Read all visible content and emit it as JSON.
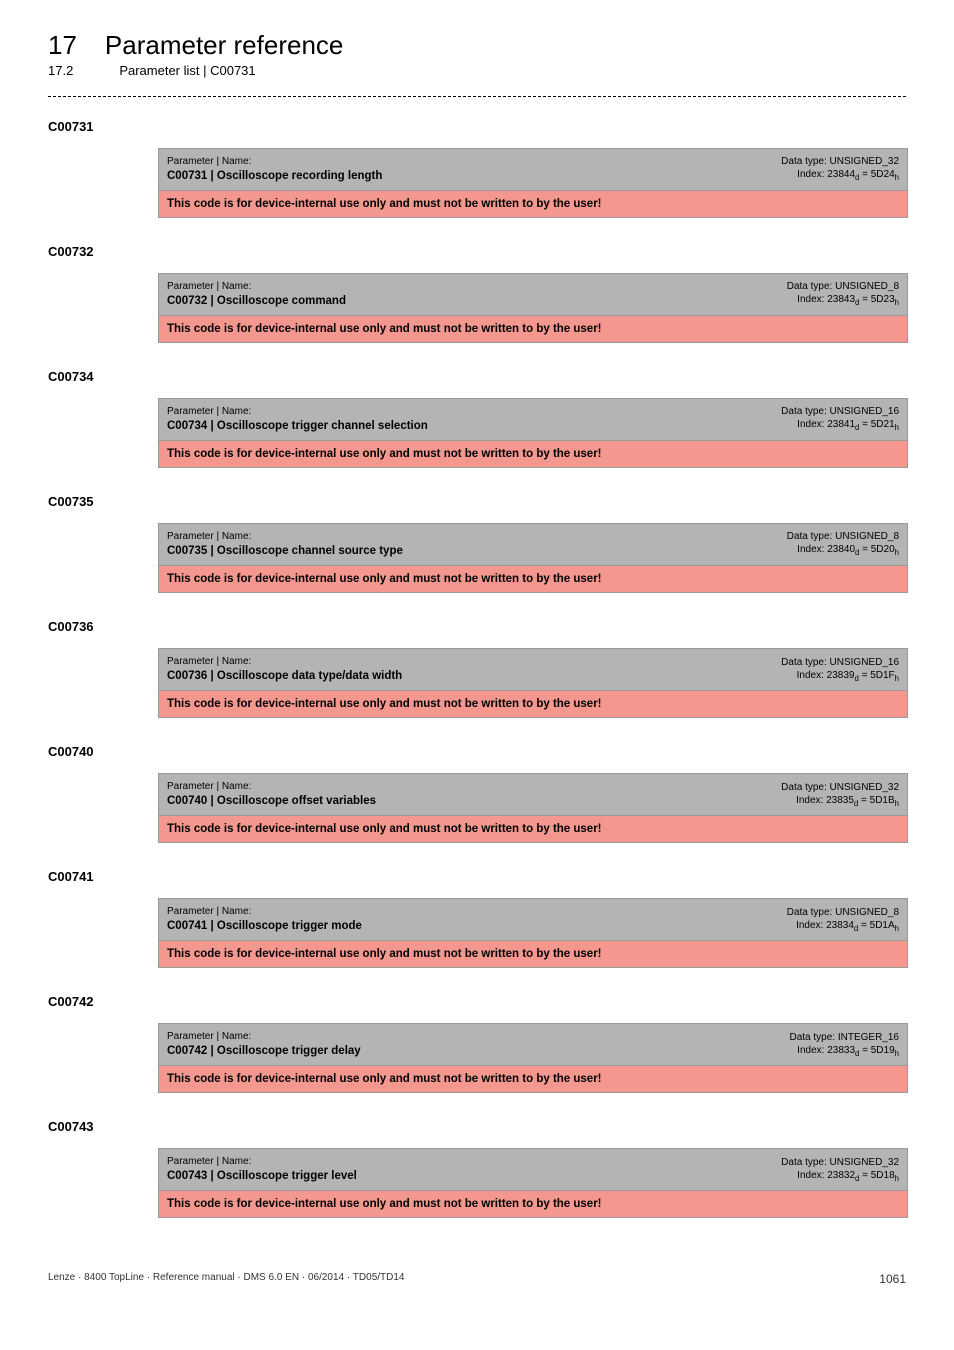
{
  "header": {
    "chapter_num": "17",
    "chapter_title": "Parameter reference",
    "sub_num": "17.2",
    "sub_title": "Parameter list | C00731"
  },
  "warn_text": "This code is for device-internal use only and must not be written to by the user!",
  "param_label": "Parameter | Name:",
  "params": [
    {
      "code": "C00731",
      "name": "C00731 | Oscilloscope recording length",
      "dtype": "Data type: UNSIGNED_32",
      "index_pre": "Index: 23844",
      "index_mid": " = 5D24"
    },
    {
      "code": "C00732",
      "name": "C00732 | Oscilloscope command",
      "dtype": "Data type: UNSIGNED_8",
      "index_pre": "Index: 23843",
      "index_mid": " = 5D23"
    },
    {
      "code": "C00734",
      "name": "C00734 | Oscilloscope trigger channel selection",
      "dtype": "Data type: UNSIGNED_16",
      "index_pre": "Index: 23841",
      "index_mid": " = 5D21"
    },
    {
      "code": "C00735",
      "name": "C00735 | Oscilloscope channel source type",
      "dtype": "Data type: UNSIGNED_8",
      "index_pre": "Index: 23840",
      "index_mid": " = 5D20"
    },
    {
      "code": "C00736",
      "name": "C00736 | Oscilloscope data type/data width",
      "dtype": "Data type: UNSIGNED_16",
      "index_pre": "Index: 23839",
      "index_mid": " = 5D1F"
    },
    {
      "code": "C00740",
      "name": "C00740 | Oscilloscope offset variables",
      "dtype": "Data type: UNSIGNED_32",
      "index_pre": "Index: 23835",
      "index_mid": " = 5D1B"
    },
    {
      "code": "C00741",
      "name": "C00741 | Oscilloscope trigger mode",
      "dtype": "Data type: UNSIGNED_8",
      "index_pre": "Index: 23834",
      "index_mid": " = 5D1A"
    },
    {
      "code": "C00742",
      "name": "C00742 | Oscilloscope trigger delay",
      "dtype": "Data type: INTEGER_16",
      "index_pre": "Index: 23833",
      "index_mid": " = 5D19"
    },
    {
      "code": "C00743",
      "name": "C00743 | Oscilloscope trigger level",
      "dtype": "Data type: UNSIGNED_32",
      "index_pre": "Index: 23832",
      "index_mid": " = 5D18"
    }
  ],
  "footer": {
    "left": "Lenze · 8400 TopLine · Reference manual · DMS 6.0 EN · 06/2014 · TD05/TD14",
    "page": "1061"
  }
}
